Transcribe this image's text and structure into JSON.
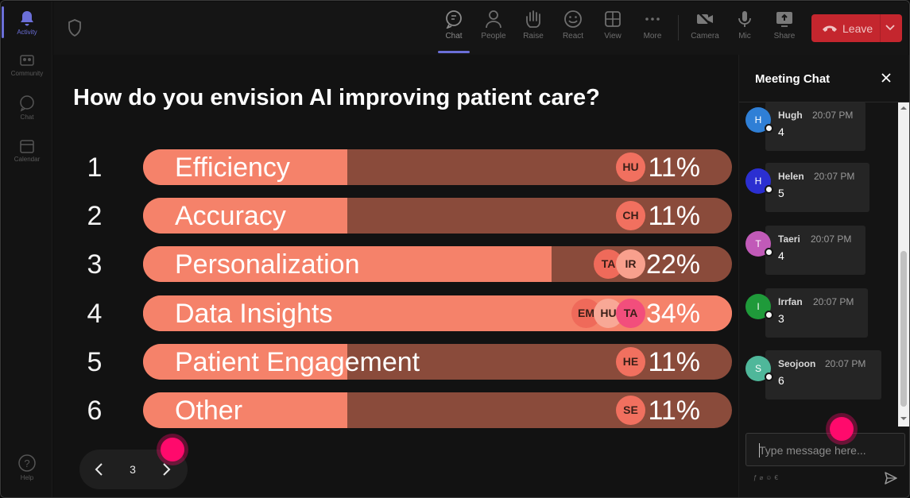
{
  "rail": {
    "items": [
      {
        "label": "Activity",
        "icon": "bell-icon",
        "active": true
      },
      {
        "label": "Community",
        "icon": "community-icon"
      },
      {
        "label": "Chat",
        "icon": "chat-icon"
      },
      {
        "label": "Calendar",
        "icon": "calendar-icon"
      }
    ],
    "help_label": "Help"
  },
  "toolbar": {
    "shield_icon": "shield-icon",
    "items": [
      {
        "label": "Chat",
        "icon": "chat-bubble-icon",
        "active": true
      },
      {
        "label": "People",
        "icon": "people-icon"
      },
      {
        "label": "Raise",
        "icon": "raise-hand-icon"
      },
      {
        "label": "React",
        "icon": "react-icon"
      },
      {
        "label": "View",
        "icon": "view-grid-icon"
      },
      {
        "label": "More",
        "icon": "more-icon"
      },
      {
        "label": "Camera",
        "icon": "camera-off-icon"
      },
      {
        "label": "Mic",
        "icon": "mic-icon"
      },
      {
        "label": "Share",
        "icon": "share-icon"
      }
    ],
    "leave_label": "Leave",
    "leave_color": "#c4262e"
  },
  "poll": {
    "question": "How do you envision AI improving patient care?",
    "options": [
      {
        "number": "1",
        "label": "Efficiency",
        "percent": "11%",
        "fraction": 0.11,
        "highlight": false,
        "voters": [
          {
            "initials": "HU",
            "color": "#f1705f"
          }
        ]
      },
      {
        "number": "2",
        "label": "Accuracy",
        "percent": "11%",
        "fraction": 0.11,
        "highlight": false,
        "voters": [
          {
            "initials": "CH",
            "color": "#f1705f"
          }
        ]
      },
      {
        "number": "3",
        "label": "Personalization",
        "percent": "22%",
        "fraction": 0.22,
        "highlight": false,
        "voters": [
          {
            "initials": "TA",
            "color": "#ef6a5a"
          },
          {
            "initials": "IR",
            "color": "#f8a08d"
          }
        ]
      },
      {
        "number": "4",
        "label": "Data Insights",
        "percent": "34%",
        "fraction": 0.34,
        "highlight": true,
        "voters": [
          {
            "initials": "EM",
            "color": "#ef6a5a"
          },
          {
            "initials": "HU",
            "color": "#f8a896"
          },
          {
            "initials": "TA",
            "color": "#f24e7c"
          }
        ]
      },
      {
        "number": "5",
        "label": "Patient Engagement",
        "percent": "11%",
        "fraction": 0.11,
        "highlight": false,
        "voters": [
          {
            "initials": "HE",
            "color": "#f1705f"
          }
        ]
      },
      {
        "number": "6",
        "label": "Other",
        "percent": "11%",
        "fraction": 0.11,
        "highlight": false,
        "voters": [
          {
            "initials": "SE",
            "color": "#f1705f"
          }
        ]
      }
    ],
    "bar_color": "#f5826a",
    "track_color": "#8a4b3b"
  },
  "pager": {
    "page": "3"
  },
  "chat": {
    "title": "Meeting Chat",
    "messages": [
      {
        "name": "Hugh",
        "initial": "H",
        "time": "20:07 PM",
        "text": "4",
        "avatar_color": "#2f7fd6"
      },
      {
        "name": "Helen",
        "initial": "H",
        "time": "20:07 PM",
        "text": "5",
        "avatar_color": "#2b2fd1"
      },
      {
        "name": "Taeri",
        "initial": "T",
        "time": "20:07 PM",
        "text": "4",
        "avatar_color": "#c15ab8"
      },
      {
        "name": "Irrfan",
        "initial": "I",
        "time": "20:07 PM",
        "text": "3",
        "avatar_color": "#1f9a3a"
      },
      {
        "name": "Seojoon",
        "initial": "S",
        "time": "20:07 PM",
        "text": "6",
        "avatar_color": "#4fb79a"
      }
    ],
    "input_placeholder": "Type message here..."
  }
}
